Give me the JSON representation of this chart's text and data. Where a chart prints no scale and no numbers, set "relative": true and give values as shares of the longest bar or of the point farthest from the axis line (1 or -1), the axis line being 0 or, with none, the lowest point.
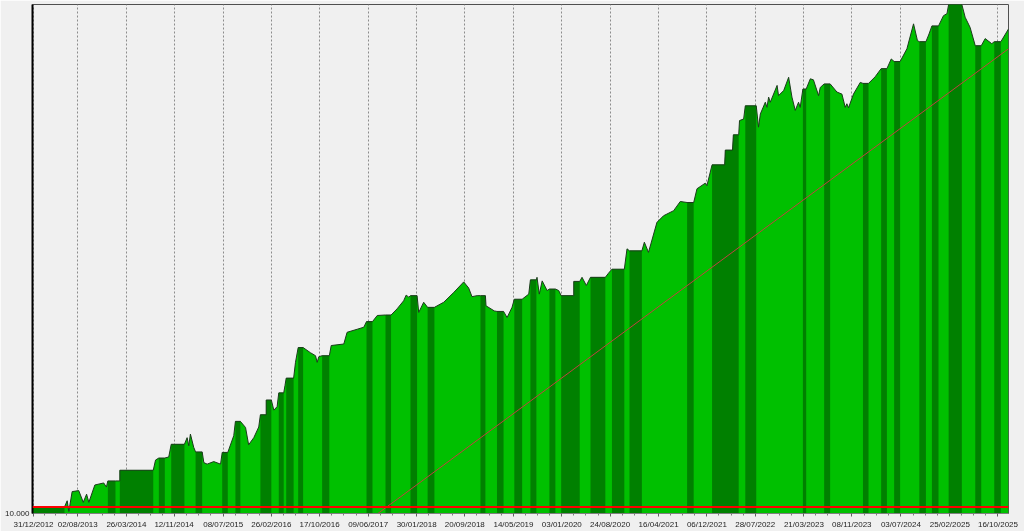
{
  "chart_data": {
    "type": "area",
    "relative": true,
    "grid": "x",
    "xlim": [
      "2012-12-26",
      "2025-12-06"
    ],
    "xticks": [
      {
        "value": "2012-12-31",
        "label": "31/12/2012"
      },
      {
        "value": "2013-08-02",
        "label": "02/08/2013"
      },
      {
        "value": "2014-03-26",
        "label": "26/03/2014"
      },
      {
        "value": "2014-11-12",
        "label": "12/11/2014"
      },
      {
        "value": "2015-07-08",
        "label": "08/07/2015"
      },
      {
        "value": "2016-02-26",
        "label": "26/02/2016"
      },
      {
        "value": "2016-10-17",
        "label": "17/10/2016"
      },
      {
        "value": "2017-06-09",
        "label": "09/06/2017"
      },
      {
        "value": "2018-01-30",
        "label": "30/01/2018"
      },
      {
        "value": "2018-09-20",
        "label": "20/09/2018"
      },
      {
        "value": "2019-05-14",
        "label": "14/05/2019"
      },
      {
        "value": "2020-01-03",
        "label": "03/01/2020"
      },
      {
        "value": "2020-08-24",
        "label": "24/08/2020"
      },
      {
        "value": "2021-04-16",
        "label": "16/04/2021"
      },
      {
        "value": "2021-12-06",
        "label": "06/12/2021"
      },
      {
        "value": "2022-07-28",
        "label": "28/07/2022"
      },
      {
        "value": "2023-03-21",
        "label": "21/03/2023"
      },
      {
        "value": "2023-11-08",
        "label": "08/11/2023"
      },
      {
        "value": "2024-07-03",
        "label": "03/07/2024"
      },
      {
        "value": "2025-02-25",
        "label": "25/02/2025"
      },
      {
        "value": "2025-10-16",
        "label": "16/10/2025"
      }
    ],
    "x": [
      "2012-12-26",
      "2013-05-30",
      "2013-06-12",
      "2013-06-20",
      "2013-07-06",
      "2013-08-07",
      "2013-08-29",
      "2013-09-14",
      "2013-09-25",
      "2013-10-24",
      "2013-12-06",
      "2013-12-19",
      "2013-12-26",
      "2014-02-01",
      "2014-02-22",
      "2014-02-22",
      "2014-08-03",
      "2014-08-14",
      "2014-08-30",
      "2014-09-28",
      "2014-10-17",
      "2014-10-29",
      "2015-01-01",
      "2015-01-14",
      "2015-01-22",
      "2015-01-30",
      "2015-02-15",
      "2015-02-24",
      "2015-03-28",
      "2015-04-05",
      "2015-04-21",
      "2015-05-23",
      "2015-06-25",
      "2015-07-03",
      "2015-07-30",
      "2015-08-28",
      "2015-09-05",
      "2015-09-29",
      "2015-10-24",
      "2015-11-08",
      "2015-12-03",
      "2015-12-27",
      "2016-01-04",
      "2016-02-01",
      "2016-02-01",
      "2016-02-26",
      "2016-03-09",
      "2016-03-25",
      "2016-04-02",
      "2016-04-26",
      "2016-05-02",
      "2016-05-08",
      "2016-06-13",
      "2016-06-22",
      "2016-07-05",
      "2016-07-29",
      "2016-09-02",
      "2016-09-27",
      "2016-10-05",
      "2016-10-13",
      "2016-10-29",
      "2016-12-03",
      "2016-12-12",
      "2017-02-11",
      "2017-02-27",
      "2017-04-17",
      "2017-05-19",
      "2017-06-01",
      "2017-06-30",
      "2017-07-23",
      "2017-09-01",
      "2017-09-28",
      "2017-10-27",
      "2017-11-28",
      "2017-12-10",
      "2017-12-23",
      "2017-12-31",
      "2018-02-01",
      "2018-02-09",
      "2018-03-05",
      "2018-03-24",
      "2018-04-26",
      "2018-06-10",
      "2018-07-28",
      "2018-09-15",
      "2018-10-09",
      "2018-10-25",
      "2018-11-19",
      "2018-12-05",
      "2018-12-29",
      "2019-01-01",
      "2019-02-10",
      "2019-02-23",
      "2019-03-27",
      "2019-04-13",
      "2019-05-07",
      "2019-05-18",
      "2019-06-25",
      "2019-07-27",
      "2019-08-04",
      "2019-09-02",
      "2019-09-05",
      "2019-09-16",
      "2019-09-30",
      "2019-10-24",
      "2019-11-04",
      "2019-12-03",
      "2019-12-19",
      "2019-12-31",
      "2020-03-01",
      "2020-03-01",
      "2020-03-30",
      "2020-04-10",
      "2020-05-01",
      "2020-05-21",
      "2020-08-01",
      "2020-08-16",
      "2020-09-02",
      "2020-11-01",
      "2020-11-14",
      "2020-11-26",
      "2021-01-25",
      "2021-02-06",
      "2021-02-26",
      "2021-03-23",
      "2021-04-08",
      "2021-05-10",
      "2021-06-28",
      "2021-07-30",
      "2021-09-01",
      "2021-10-03",
      "2021-10-19",
      "2021-11-28",
      "2021-12-06",
      "2021-12-31",
      "2022-03-02",
      "2022-03-05",
      "2022-04-09",
      "2022-04-13",
      "2022-05-09",
      "2022-05-13",
      "2022-06-02",
      "2022-06-10",
      "2022-08-02",
      "2022-08-13",
      "2022-08-22",
      "2022-09-15",
      "2022-09-23",
      "2022-10-01",
      "2022-10-09",
      "2022-11-11",
      "2022-11-18",
      "2022-12-13",
      "2023-01-06",
      "2023-01-22",
      "2023-02-07",
      "2023-02-23",
      "2023-03-03",
      "2023-03-16",
      "2023-04-01",
      "2023-04-21",
      "2023-05-06",
      "2023-05-31",
      "2023-06-08",
      "2023-06-27",
      "2023-07-26",
      "2023-08-28",
      "2023-09-21",
      "2023-10-07",
      "2023-10-15",
      "2023-10-23",
      "2023-11-16",
      "2023-12-19",
      "2024-01-01",
      "2024-01-28",
      "2024-02-29",
      "2024-03-29",
      "2024-04-26",
      "2024-05-17",
      "2024-05-31",
      "2024-06-29",
      "2024-08-01",
      "2024-09-02",
      "2024-09-21",
      "2024-09-30",
      "2024-11-01",
      "2024-11-16",
      "2024-11-30",
      "2025-01-01",
      "2025-01-25",
      "2025-02-11",
      "2025-02-19",
      "2025-04-24",
      "2025-05-10",
      "2025-06-03",
      "2025-06-28",
      "2025-07-27",
      "2025-08-15",
      "2025-09-16",
      "2025-09-28",
      "2025-10-30",
      "2025-12-06"
    ],
    "series": [
      {
        "color": "#00c000",
        "values": [
          0.013,
          0.013,
          0.025,
          0.004,
          0.043,
          0.045,
          0.022,
          0.038,
          0.022,
          0.056,
          0.06,
          0.052,
          0.064,
          0.064,
          0.064,
          0.085,
          0.085,
          0.105,
          0.109,
          0.109,
          0.111,
          0.136,
          0.136,
          0.149,
          0.133,
          0.156,
          0.13,
          0.121,
          0.121,
          0.1,
          0.097,
          0.102,
          0.097,
          0.12,
          0.12,
          0.153,
          0.181,
          0.181,
          0.169,
          0.135,
          0.149,
          0.17,
          0.194,
          0.194,
          0.223,
          0.223,
          0.203,
          0.21,
          0.237,
          0.237,
          0.251,
          0.266,
          0.266,
          0.297,
          0.326,
          0.326,
          0.316,
          0.31,
          0.297,
          0.308,
          0.31,
          0.31,
          0.33,
          0.333,
          0.356,
          0.362,
          0.366,
          0.377,
          0.377,
          0.389,
          0.39,
          0.39,
          0.402,
          0.418,
          0.429,
          0.425,
          0.428,
          0.428,
          0.395,
          0.415,
          0.405,
          0.405,
          0.415,
          0.434,
          0.455,
          0.443,
          0.426,
          0.428,
          0.428,
          0.428,
          0.408,
          0.398,
          0.397,
          0.397,
          0.385,
          0.405,
          0.421,
          0.421,
          0.431,
          0.459,
          0.459,
          0.464,
          0.431,
          0.457,
          0.438,
          0.441,
          0.441,
          0.438,
          0.428,
          0.428,
          0.456,
          0.456,
          0.464,
          0.448,
          0.464,
          0.464,
          0.472,
          0.48,
          0.48,
          0.52,
          0.516,
          0.516,
          0.533,
          0.513,
          0.549,
          0.572,
          0.585,
          0.595,
          0.613,
          0.611,
          0.611,
          0.638,
          0.649,
          0.644,
          0.685,
          0.685,
          0.714,
          0.714,
          0.744,
          0.744,
          0.772,
          0.775,
          0.801,
          0.801,
          0.759,
          0.785,
          0.808,
          0.798,
          0.818,
          0.808,
          0.841,
          0.821,
          0.831,
          0.857,
          0.818,
          0.792,
          0.808,
          0.798,
          0.834,
          0.834,
          0.854,
          0.852,
          0.821,
          0.837,
          0.844,
          0.844,
          0.828,
          0.824,
          0.798,
          0.805,
          0.797,
          0.824,
          0.847,
          0.845,
          0.845,
          0.858,
          0.874,
          0.874,
          0.893,
          0.888,
          0.888,
          0.913,
          0.962,
          0.929,
          0.927,
          0.927,
          0.942,
          0.958,
          0.958,
          0.978,
          0.982,
          1.0,
          1.0,
          0.975,
          0.955,
          0.919,
          0.919,
          0.933,
          0.923,
          0.927,
          0.927,
          0.952
        ]
      },
      {
        "color": "#008000",
        "values": [
          0.013,
          0.013,
          null,
          null,
          null,
          null,
          null,
          null,
          null,
          null,
          null,
          null,
          0.064,
          0.064,
          null,
          0.085,
          0.085,
          null,
          0.109,
          0.109,
          null,
          0.136,
          0.136,
          null,
          null,
          null,
          null,
          0.121,
          0.121,
          null,
          null,
          null,
          null,
          0.12,
          0.12,
          null,
          0.181,
          0.181,
          null,
          null,
          null,
          null,
          0.194,
          0.194,
          0.223,
          0.223,
          null,
          null,
          0.237,
          0.237,
          null,
          0.266,
          0.266,
          null,
          0.326,
          0.326,
          null,
          null,
          null,
          null,
          0.31,
          0.31,
          null,
          null,
          null,
          null,
          null,
          0.377,
          0.377,
          null,
          0.39,
          0.39,
          null,
          null,
          null,
          null,
          0.428,
          0.428,
          null,
          null,
          0.405,
          0.405,
          null,
          null,
          null,
          null,
          null,
          null,
          0.428,
          0.428,
          null,
          null,
          0.397,
          0.397,
          null,
          null,
          0.421,
          0.421,
          null,
          0.459,
          0.459,
          null,
          null,
          null,
          null,
          0.441,
          0.441,
          null,
          0.428,
          0.428,
          0.456,
          0.456,
          null,
          null,
          0.464,
          0.464,
          null,
          0.48,
          0.48,
          null,
          0.516,
          0.516,
          null,
          null,
          null,
          null,
          null,
          null,
          null,
          0.611,
          0.611,
          null,
          null,
          null,
          0.685,
          0.685,
          0.714,
          0.714,
          0.744,
          0.744,
          null,
          null,
          0.801,
          0.801,
          null,
          null,
          null,
          null,
          null,
          null,
          null,
          null,
          null,
          null,
          null,
          null,
          null,
          null,
          0.834,
          0.834,
          null,
          null,
          null,
          null,
          0.844,
          0.844,
          null,
          null,
          null,
          null,
          null,
          null,
          null,
          0.845,
          0.845,
          null,
          0.874,
          0.874,
          null,
          0.888,
          0.888,
          null,
          null,
          null,
          0.927,
          0.927,
          null,
          0.958,
          0.958,
          null,
          null,
          1.0,
          1.0,
          null,
          null,
          0.919,
          0.919,
          null,
          null,
          0.927,
          0.927,
          null
        ]
      },
      {
        "type": "line",
        "color": "#c04040",
        "x": [
          "2017-07-26",
          "2025-12-06"
        ],
        "values": [
          0,
          0.913
        ]
      }
    ],
    "ref_lines": [
      {
        "axis": "y",
        "value": 0.013,
        "color": "#ff0000"
      }
    ],
    "annotations": [
      "10.000"
    ]
  }
}
